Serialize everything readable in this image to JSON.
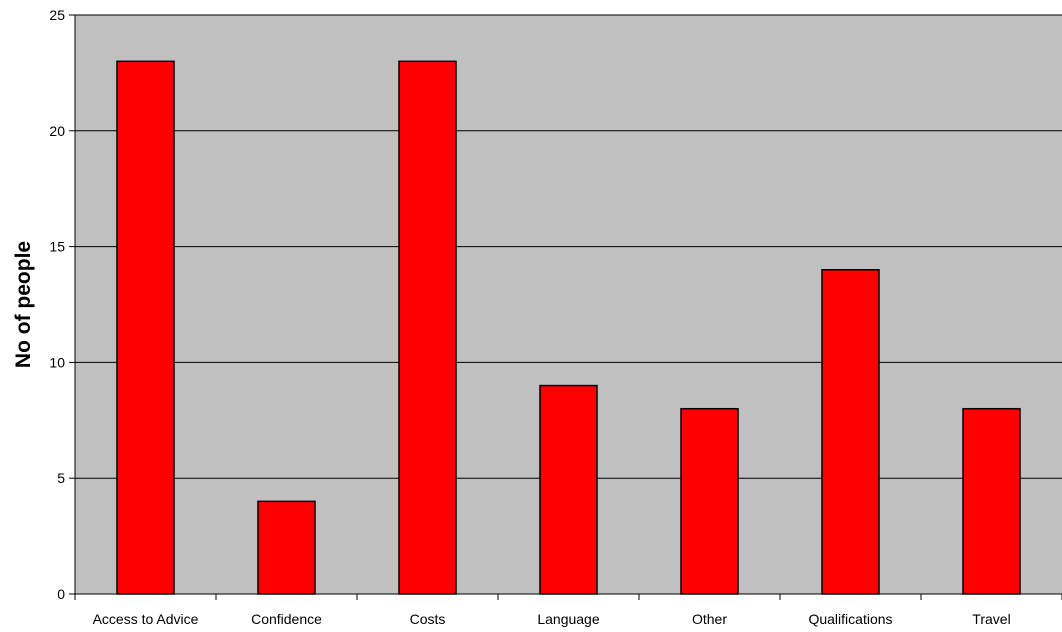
{
  "chart_data": {
    "type": "bar",
    "title": "",
    "xlabel": "",
    "ylabel": "No of people",
    "ylim": [
      0,
      25
    ],
    "yticks": [
      0,
      5,
      10,
      15,
      20,
      25
    ],
    "grid": true,
    "categories": [
      "Access to Advice",
      "Confidence",
      "Costs",
      "Language",
      "Other",
      "Qualifications",
      "Travel"
    ],
    "values": [
      23,
      4,
      23,
      9,
      8,
      14,
      8
    ],
    "colors": {
      "plot_background": "#c0c0c0",
      "bar_fill": "#ff0000",
      "bar_stroke": "#000000",
      "gridline": "#000000"
    }
  }
}
